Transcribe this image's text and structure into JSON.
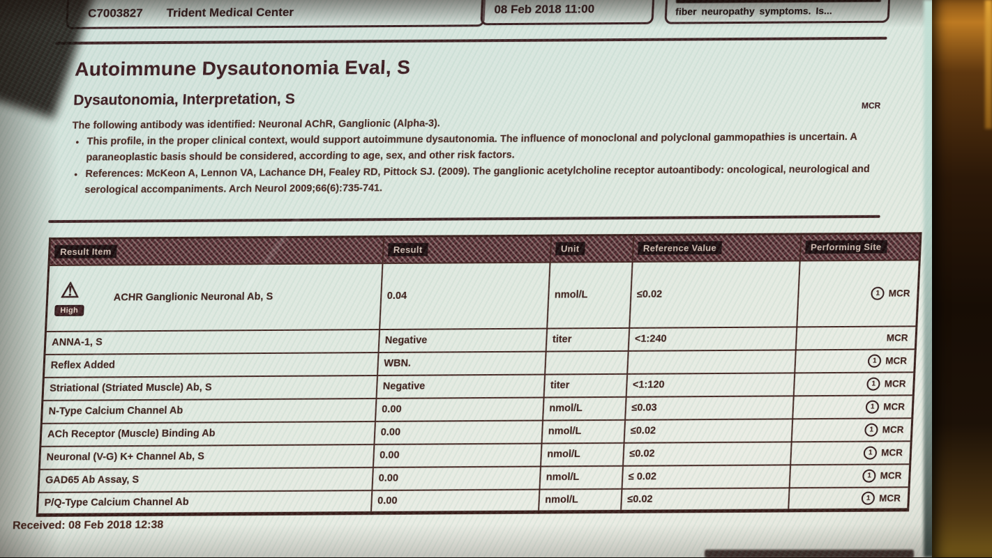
{
  "header": {
    "left_box": {
      "accession_id": "C7003827",
      "facility": "Trident Medical Center"
    },
    "middle_box": {
      "datetime": "08 Feb 2018 11:00"
    },
    "right_box": {
      "snippet": "fiber neuropathy symptoms. Is..."
    }
  },
  "report": {
    "title": "Autoimmune Dysautonomia Eval, S",
    "section_title": "Dysautonomia, Interpretation, S",
    "site_code": "MCR",
    "intro": "The following antibody was identified: Neuronal AChR, Ganglionic (Alpha-3).",
    "bullets": [
      "This profile, in the proper clinical context, would support autoimmune dysautonomia. The influence of monoclonal and polyclonal gammopathies is uncertain. A paraneoplastic basis should be considered, according to age, sex, and other risk factors.",
      "References: McKeon A, Lennon VA, Lachance DH, Fealey RD, Pittock SJ. (2009). The ganglionic acetylcholine receptor autoantibody: oncological, neurological and serological accompaniments. Arch Neurol 2009;66(6):735-741."
    ]
  },
  "table": {
    "columns": [
      "Result Item",
      "Result",
      "Unit",
      "Reference Value",
      "Performing Site"
    ],
    "rows": [
      {
        "item": "ACHR Ganglionic Neuronal Ab, S",
        "flag": "High",
        "flag_icon": "warning-triangle-icon",
        "result": "0.04",
        "unit": "nmol/L",
        "reference": "≤0.02",
        "site": "MCR",
        "site_note": true
      },
      {
        "item": "ANNA-1, S",
        "result": "Negative",
        "unit": "titer",
        "reference": "<1:240",
        "site": "MCR",
        "site_note": false
      },
      {
        "item": "Reflex Added",
        "result": "WBN.",
        "unit": "",
        "reference": "",
        "site": "MCR",
        "site_note": true
      },
      {
        "item": "Striational (Striated Muscle) Ab, S",
        "result": "Negative",
        "unit": "titer",
        "reference": "<1:120",
        "site": "MCR",
        "site_note": true
      },
      {
        "item": "N-Type Calcium Channel Ab",
        "result": "0.00",
        "unit": "nmol/L",
        "reference": "≤0.03",
        "site": "MCR",
        "site_note": true
      },
      {
        "item": "ACh Receptor (Muscle) Binding Ab",
        "result": "0.00",
        "unit": "nmol/L",
        "reference": "≤0.02",
        "site": "MCR",
        "site_note": true
      },
      {
        "item": "Neuronal (V-G) K+ Channel Ab, S",
        "result": "0.00",
        "unit": "nmol/L",
        "reference": "≤0.02",
        "site": "MCR",
        "site_note": true
      },
      {
        "item": "GAD65 Ab Assay, S",
        "result": "0.00",
        "unit": "nmol/L",
        "reference": "≤ 0.02",
        "site": "MCR",
        "site_note": true
      },
      {
        "item": "P/Q-Type Calcium Channel Ab",
        "result": "0.00",
        "unit": "nmol/L",
        "reference": "≤0.02",
        "site": "MCR",
        "site_note": true
      }
    ]
  },
  "footer": {
    "received": "Received: 08 Feb 2018 12:38"
  }
}
